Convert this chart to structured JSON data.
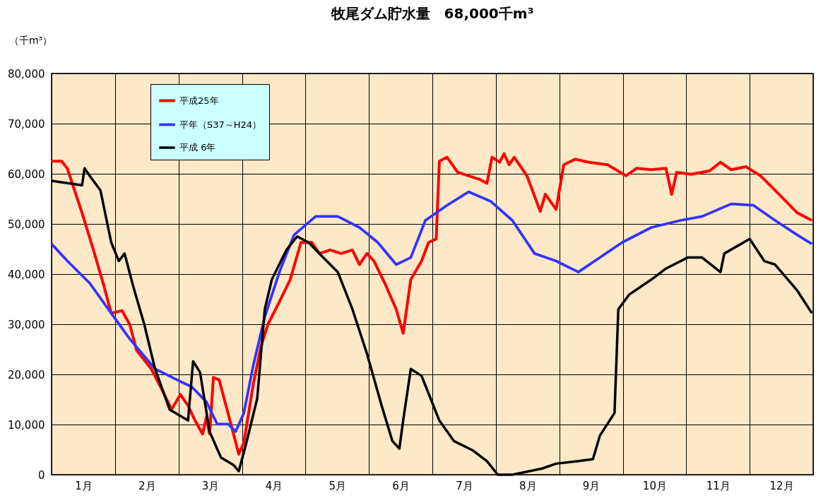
{
  "chart_data": {
    "type": "line",
    "title": "牧尾ダム貯水量　68,000千m³",
    "ylabel": "（千m³）",
    "xlim": [
      0,
      12
    ],
    "xticks": [
      {
        "value": 0,
        "label": null
      },
      {
        "value": 0.5,
        "label": "1月"
      },
      {
        "value": 1,
        "label": null
      },
      {
        "value": 1.5,
        "label": "2月"
      },
      {
        "value": 2,
        "label": null
      },
      {
        "value": 2.5,
        "label": "3月"
      },
      {
        "value": 3,
        "label": null
      },
      {
        "value": 3.5,
        "label": "4月"
      },
      {
        "value": 4,
        "label": null
      },
      {
        "value": 4.5,
        "label": "5月"
      },
      {
        "value": 5,
        "label": null
      },
      {
        "value": 5.5,
        "label": "6月"
      },
      {
        "value": 6,
        "label": null
      },
      {
        "value": 6.5,
        "label": "7月"
      },
      {
        "value": 7,
        "label": null
      },
      {
        "value": 7.5,
        "label": "8月"
      },
      {
        "value": 8,
        "label": null
      },
      {
        "value": 8.5,
        "label": "9月"
      },
      {
        "value": 9,
        "label": null
      },
      {
        "value": 9.5,
        "label": "10月"
      },
      {
        "value": 10,
        "label": null
      },
      {
        "value": 10.5,
        "label": "11月"
      },
      {
        "value": 11,
        "label": null
      },
      {
        "value": 11.5,
        "label": "12月"
      },
      {
        "value": 12,
        "label": null
      }
    ],
    "ylim": [
      0,
      80000
    ],
    "yticks": [
      {
        "value": 0,
        "label": "0"
      },
      {
        "value": 10000,
        "label": "10,000"
      },
      {
        "value": 20000,
        "label": "20,000"
      },
      {
        "value": 30000,
        "label": "30,000"
      },
      {
        "value": 40000,
        "label": "40,000"
      },
      {
        "value": 50000,
        "label": "50,000"
      },
      {
        "value": 60000,
        "label": "60,000"
      },
      {
        "value": 70000,
        "label": "70,000"
      },
      {
        "value": 80000,
        "label": "80,000"
      }
    ],
    "grid": true,
    "legend": "top left",
    "line_style": "solid",
    "marker": "none",
    "series": [
      {
        "name": "平成25年",
        "color": "#ff0000",
        "x": [
          0,
          0.16,
          0.25,
          0.48,
          0.66,
          0.83,
          0.94,
          1.11,
          1.23,
          1.34,
          1.57,
          1.75,
          1.89,
          2.03,
          2.15,
          2.26,
          2.38,
          2.44,
          2.49,
          2.55,
          2.64,
          2.78,
          2.95,
          3.03,
          3.18,
          3.3,
          3.41,
          3.59,
          3.76,
          3.93,
          4.1,
          4.22,
          4.39,
          4.56,
          4.74,
          4.85,
          4.97,
          5.08,
          5.25,
          5.43,
          5.54,
          5.66,
          5.83,
          5.94,
          6.06,
          6.11,
          6.23,
          6.4,
          6.57,
          6.74,
          6.86,
          6.94,
          7.06,
          7.13,
          7.21,
          7.29,
          7.49,
          7.7,
          7.78,
          7.95,
          8.07,
          8.25,
          8.47,
          8.76,
          9.05,
          9.22,
          9.45,
          9.68,
          9.77,
          9.85,
          10.08,
          10.37,
          10.54,
          10.71,
          10.94,
          11.17,
          11.4,
          11.75,
          11.98
        ],
        "values": [
          62500,
          62500,
          61000,
          52200,
          44800,
          37400,
          32200,
          32700,
          30000,
          24800,
          21100,
          16700,
          13000,
          16000,
          13800,
          10800,
          8100,
          11500,
          8100,
          19400,
          18900,
          12300,
          4100,
          6400,
          18200,
          25600,
          30000,
          34500,
          38900,
          46300,
          46300,
          44100,
          44800,
          44100,
          44800,
          41900,
          44100,
          42600,
          38200,
          33000,
          28200,
          38900,
          42600,
          46300,
          47000,
          62500,
          63300,
          60300,
          59600,
          58900,
          58100,
          63300,
          62300,
          64000,
          61800,
          63300,
          59600,
          52500,
          55900,
          52900,
          61800,
          62900,
          62300,
          61800,
          59600,
          61100,
          60800,
          61100,
          55900,
          60300,
          59900,
          60600,
          62300,
          60800,
          61400,
          59600,
          56700,
          52200,
          50700
        ]
      },
      {
        "name": "平年（S37～H24）",
        "color": "#3333ff",
        "x": [
          0,
          0.25,
          0.6,
          0.94,
          1.23,
          1.63,
          1.98,
          2.21,
          2.44,
          2.61,
          2.78,
          2.9,
          3.03,
          3.18,
          3.36,
          3.59,
          3.82,
          4.16,
          4.51,
          4.85,
          5.14,
          5.43,
          5.66,
          5.89,
          6.23,
          6.57,
          6.92,
          7.26,
          7.61,
          7.95,
          8.3,
          8.64,
          8.99,
          9.45,
          9.91,
          10.25,
          10.71,
          11.06,
          11.4,
          11.75,
          11.98
        ],
        "values": [
          46000,
          42600,
          38200,
          32200,
          27100,
          21100,
          18900,
          17500,
          14500,
          10100,
          10100,
          8600,
          12300,
          21900,
          31500,
          40400,
          47800,
          51500,
          51500,
          49300,
          46300,
          41900,
          43300,
          50700,
          53700,
          56400,
          54500,
          50700,
          44100,
          42600,
          40400,
          43300,
          46300,
          49300,
          50700,
          51500,
          54000,
          53700,
          50700,
          47800,
          46000
        ]
      },
      {
        "name": "平成 6年",
        "color": "#000000",
        "x": [
          0,
          0.48,
          0.52,
          0.6,
          0.77,
          0.94,
          1.06,
          1.15,
          1.29,
          1.46,
          1.63,
          1.86,
          2.15,
          2.23,
          2.34,
          2.49,
          2.67,
          2.87,
          2.95,
          3.07,
          3.24,
          3.36,
          3.47,
          3.7,
          3.87,
          4.05,
          4.28,
          4.51,
          4.74,
          4.97,
          5.2,
          5.37,
          5.48,
          5.54,
          5.66,
          5.83,
          6.11,
          6.34,
          6.63,
          6.86,
          7.03,
          7.26,
          7.72,
          7.95,
          8.3,
          8.53,
          8.64,
          8.87,
          8.93,
          9.1,
          9.45,
          9.68,
          10.02,
          10.25,
          10.54,
          10.6,
          11.0,
          11.23,
          11.4,
          11.75,
          11.98
        ],
        "values": [
          58600,
          57700,
          61100,
          59600,
          56700,
          46300,
          42600,
          44100,
          37400,
          30000,
          21100,
          13000,
          10800,
          22600,
          20400,
          8600,
          3400,
          1900,
          700,
          6400,
          15200,
          33000,
          38900,
          44800,
          47500,
          46300,
          43300,
          40400,
          33000,
          24100,
          13800,
          6700,
          5200,
          10800,
          21100,
          19700,
          10800,
          6700,
          4900,
          2700,
          0,
          0,
          1200,
          2200,
          2700,
          3100,
          7800,
          12300,
          33000,
          35900,
          38900,
          41100,
          43300,
          43300,
          40400,
          44100,
          47000,
          42600,
          41900,
          36700,
          32200
        ]
      }
    ]
  }
}
